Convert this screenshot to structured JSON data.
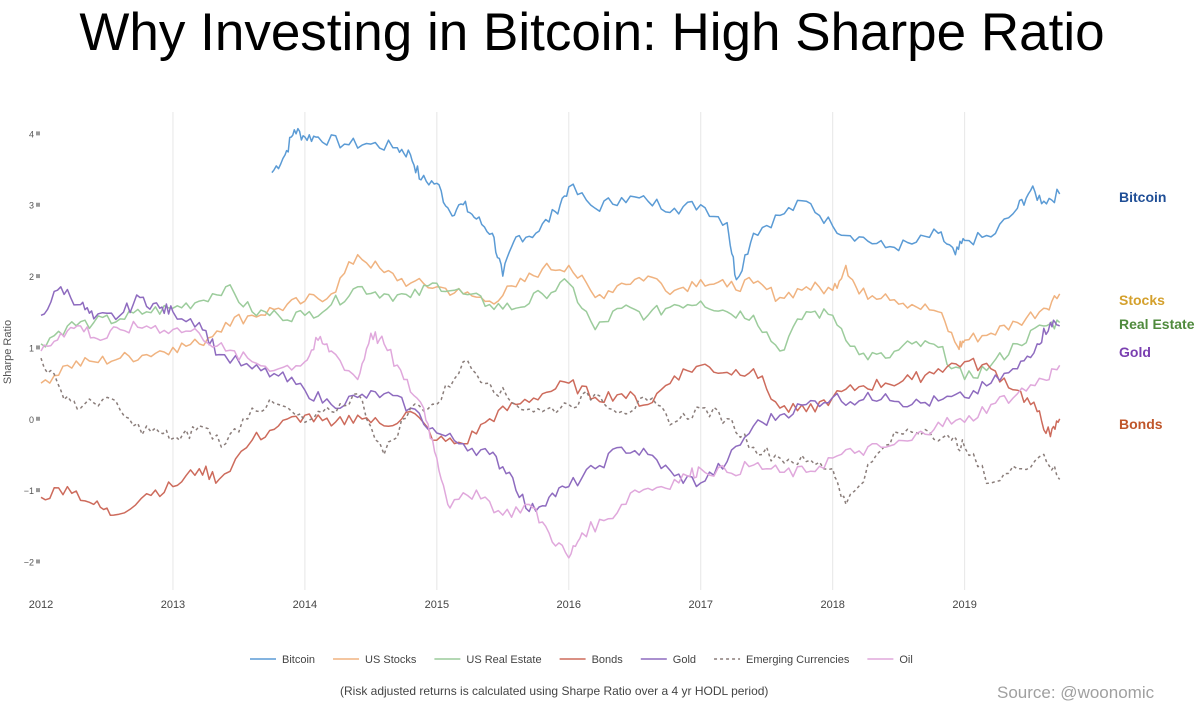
{
  "title": "Why Investing in Bitcoin: High Sharpe Ratio",
  "footnote": "(Risk adjusted returns is calculated using Sharpe Ratio over a 4 yr HODL period)",
  "source": "Source: @woonomic",
  "chart_data": {
    "type": "line",
    "title": "Why Investing in Bitcoin: High Sharpe Ratio",
    "xlabel": "",
    "ylabel": "Sharpe Ratio",
    "xlim": [
      2012.0,
      2019.95
    ],
    "ylim": [
      -2.4,
      4.3
    ],
    "x_ticks": [
      2012,
      2013,
      2014,
      2015,
      2016,
      2017,
      2018,
      2019
    ],
    "x_tick_labels": [
      "2012",
      "2013",
      "2014",
      "2015",
      "2016",
      "2017",
      "2018",
      "2019"
    ],
    "y_ticks": [
      -2,
      -1,
      0,
      1,
      2,
      3,
      4
    ],
    "y_tick_labels": [
      "−2",
      "−1",
      "0",
      "1",
      "2",
      "3",
      "4"
    ],
    "grid": "vertical",
    "legend_position": "bottom",
    "series": [
      {
        "name": "Bitcoin",
        "color": "#5b9bd5",
        "dashed": false,
        "end_label": "Bitcoin",
        "end_label_color": "#1f4e96",
        "x": [
          2013.75,
          2013.85,
          2013.92,
          2014.0,
          2014.1,
          2014.3,
          2014.5,
          2014.7,
          2014.8,
          2014.88,
          2015.0,
          2015.1,
          2015.2,
          2015.3,
          2015.42,
          2015.5,
          2015.6,
          2015.75,
          2015.9,
          2016.0,
          2016.2,
          2016.4,
          2016.6,
          2016.8,
          2017.0,
          2017.2,
          2017.27,
          2017.4,
          2017.6,
          2017.8,
          2018.0,
          2018.2,
          2018.4,
          2018.6,
          2018.8,
          2018.93,
          2019.0,
          2019.2,
          2019.4,
          2019.5,
          2019.6,
          2019.72
        ],
        "y": [
          3.45,
          3.7,
          4.05,
          3.95,
          3.95,
          3.85,
          3.85,
          3.8,
          3.7,
          3.35,
          3.3,
          2.9,
          3.0,
          2.8,
          2.6,
          2.0,
          2.55,
          2.6,
          2.9,
          3.25,
          2.95,
          3.1,
          3.05,
          2.95,
          3.0,
          2.75,
          1.95,
          2.6,
          2.85,
          3.05,
          2.7,
          2.55,
          2.4,
          2.45,
          2.6,
          2.3,
          2.5,
          2.55,
          2.95,
          3.2,
          3.05,
          3.15
        ]
      },
      {
        "name": "US Stocks",
        "color": "#f0b380",
        "dashed": false,
        "end_label": "Stocks",
        "end_label_color": "#d4a02c",
        "x": [
          2012.0,
          2012.2,
          2012.4,
          2012.6,
          2012.8,
          2013.0,
          2013.2,
          2013.4,
          2013.6,
          2013.8,
          2014.0,
          2014.2,
          2014.4,
          2014.6,
          2014.8,
          2015.0,
          2015.2,
          2015.4,
          2015.6,
          2015.8,
          2016.0,
          2016.2,
          2016.4,
          2016.6,
          2016.8,
          2017.0,
          2017.2,
          2017.4,
          2017.6,
          2017.8,
          2018.0,
          2018.1,
          2018.2,
          2018.4,
          2018.6,
          2018.8,
          2018.95,
          2019.0,
          2019.2,
          2019.4,
          2019.6,
          2019.72
        ],
        "y": [
          0.5,
          0.75,
          0.8,
          0.85,
          0.9,
          1.0,
          1.05,
          1.35,
          1.45,
          1.55,
          1.65,
          1.75,
          2.3,
          2.05,
          1.9,
          1.85,
          1.75,
          1.65,
          1.85,
          2.1,
          2.15,
          1.7,
          1.9,
          2.0,
          1.8,
          1.95,
          1.85,
          1.9,
          1.7,
          1.85,
          1.8,
          2.15,
          1.75,
          1.75,
          1.6,
          1.5,
          1.0,
          1.1,
          1.2,
          1.35,
          1.55,
          1.75
        ]
      },
      {
        "name": "US Real Estate",
        "color": "#9ccc9c",
        "dashed": false,
        "end_label": "Real Estate",
        "end_label_color": "#4f8a3c",
        "x": [
          2012.0,
          2012.2,
          2012.4,
          2012.6,
          2012.8,
          2013.0,
          2013.2,
          2013.4,
          2013.6,
          2013.8,
          2014.0,
          2014.2,
          2014.4,
          2014.6,
          2014.8,
          2015.0,
          2015.2,
          2015.4,
          2015.6,
          2015.8,
          2016.0,
          2016.2,
          2016.4,
          2016.6,
          2016.8,
          2017.0,
          2017.2,
          2017.4,
          2017.6,
          2017.8,
          2018.0,
          2018.2,
          2018.4,
          2018.6,
          2018.8,
          2019.0,
          2019.2,
          2019.4,
          2019.6,
          2019.72
        ],
        "y": [
          1.05,
          1.3,
          1.35,
          1.4,
          1.5,
          1.55,
          1.65,
          1.85,
          1.5,
          1.45,
          1.45,
          1.6,
          1.85,
          1.75,
          1.7,
          1.9,
          1.75,
          1.6,
          1.55,
          1.75,
          1.9,
          1.25,
          1.55,
          1.45,
          1.6,
          1.65,
          1.5,
          1.45,
          0.95,
          1.5,
          1.45,
          0.9,
          0.85,
          1.05,
          1.0,
          0.55,
          0.75,
          1.05,
          1.3,
          1.35
        ]
      },
      {
        "name": "Bonds",
        "color": "#cd6b5c",
        "dashed": false,
        "end_label": "Bonds",
        "end_label_color": "#c0562a",
        "x": [
          2012.0,
          2012.2,
          2012.4,
          2012.55,
          2012.8,
          2013.0,
          2013.2,
          2013.35,
          2013.6,
          2013.8,
          2014.0,
          2014.2,
          2014.4,
          2014.6,
          2014.8,
          2015.0,
          2015.2,
          2015.4,
          2015.6,
          2015.8,
          2016.0,
          2016.2,
          2016.4,
          2016.6,
          2016.8,
          2017.0,
          2017.2,
          2017.4,
          2017.6,
          2017.8,
          2018.0,
          2018.2,
          2018.4,
          2018.6,
          2018.8,
          2019.0,
          2019.2,
          2019.4,
          2019.55,
          2019.65,
          2019.72
        ],
        "y": [
          -1.1,
          -0.95,
          -1.2,
          -1.35,
          -1.05,
          -0.95,
          -0.7,
          -0.85,
          -0.3,
          -0.1,
          0.05,
          -0.1,
          0.05,
          -0.1,
          0.1,
          -0.3,
          -0.35,
          0.0,
          0.2,
          0.35,
          0.5,
          0.3,
          0.35,
          0.2,
          0.6,
          0.75,
          0.65,
          0.7,
          0.15,
          0.1,
          0.3,
          0.45,
          0.5,
          0.55,
          0.7,
          0.8,
          0.7,
          0.4,
          0.1,
          -0.25,
          0.0
        ]
      },
      {
        "name": "Gold",
        "color": "#8e6bbf",
        "dashed": false,
        "end_label": "Gold",
        "end_label_color": "#7a3fb0",
        "x": [
          2012.0,
          2012.15,
          2012.3,
          2012.4,
          2012.6,
          2012.75,
          2012.9,
          2013.0,
          2013.2,
          2013.35,
          2013.6,
          2013.8,
          2014.0,
          2014.2,
          2014.4,
          2014.6,
          2014.8,
          2015.0,
          2015.2,
          2015.4,
          2015.55,
          2015.7,
          2015.85,
          2016.0,
          2016.2,
          2016.4,
          2016.6,
          2016.8,
          2017.0,
          2017.2,
          2017.4,
          2017.6,
          2017.8,
          2018.0,
          2018.2,
          2018.4,
          2018.6,
          2018.8,
          2019.0,
          2019.2,
          2019.4,
          2019.55,
          2019.65,
          2019.72
        ],
        "y": [
          1.45,
          1.85,
          1.6,
          1.4,
          1.45,
          1.7,
          1.55,
          1.5,
          1.35,
          0.9,
          0.7,
          0.6,
          0.4,
          0.2,
          0.3,
          0.35,
          0.15,
          -0.2,
          -0.35,
          -0.5,
          -0.75,
          -1.3,
          -1.1,
          -0.95,
          -0.7,
          -0.4,
          -0.5,
          -0.8,
          -0.9,
          -0.6,
          -0.1,
          0.05,
          0.2,
          0.3,
          0.25,
          0.35,
          0.2,
          0.25,
          0.3,
          0.5,
          0.7,
          1.05,
          1.35,
          1.3
        ]
      },
      {
        "name": "Emerging Currencies",
        "color": "#8a7d7a",
        "dashed": true,
        "end_label": "",
        "x": [
          2012.0,
          2012.15,
          2012.3,
          2012.5,
          2012.7,
          2012.9,
          2013.05,
          2013.2,
          2013.4,
          2013.6,
          2013.8,
          2014.0,
          2014.2,
          2014.4,
          2014.6,
          2014.8,
          2015.0,
          2015.2,
          2015.4,
          2015.6,
          2015.8,
          2016.0,
          2016.2,
          2016.4,
          2016.6,
          2016.8,
          2017.0,
          2017.2,
          2017.4,
          2017.6,
          2017.8,
          2018.0,
          2018.1,
          2018.3,
          2018.5,
          2018.7,
          2018.9,
          2019.0,
          2019.2,
          2019.4,
          2019.6,
          2019.72
        ],
        "y": [
          0.85,
          0.4,
          0.15,
          0.3,
          -0.1,
          -0.2,
          -0.3,
          -0.1,
          -0.35,
          0.15,
          0.2,
          -0.05,
          0.1,
          0.35,
          -0.5,
          0.15,
          0.2,
          0.8,
          0.5,
          0.2,
          0.1,
          0.2,
          0.35,
          0.1,
          0.25,
          -0.05,
          0.15,
          0.0,
          -0.4,
          -0.55,
          -0.6,
          -0.7,
          -1.2,
          -0.6,
          -0.2,
          -0.15,
          -0.3,
          -0.4,
          -0.9,
          -0.7,
          -0.5,
          -0.85
        ]
      },
      {
        "name": "Oil",
        "color": "#e0a8dc",
        "dashed": false,
        "end_label": "",
        "x": [
          2012.0,
          2012.15,
          2012.3,
          2012.45,
          2012.6,
          2012.8,
          2013.0,
          2013.2,
          2013.4,
          2013.6,
          2013.8,
          2014.0,
          2014.1,
          2014.2,
          2014.4,
          2014.5,
          2014.6,
          2014.75,
          2014.9,
          2015.0,
          2015.1,
          2015.3,
          2015.5,
          2015.7,
          2015.85,
          2016.0,
          2016.1,
          2016.3,
          2016.5,
          2016.7,
          2016.9,
          2017.0,
          2017.2,
          2017.4,
          2017.6,
          2017.8,
          2018.0,
          2018.2,
          2018.4,
          2018.6,
          2018.8,
          2019.0,
          2019.2,
          2019.4,
          2019.6,
          2019.72
        ],
        "y": [
          0.95,
          1.2,
          1.3,
          1.1,
          1.25,
          1.3,
          1.25,
          1.2,
          0.95,
          0.8,
          0.7,
          0.8,
          1.1,
          0.95,
          0.55,
          1.2,
          1.05,
          0.55,
          0.15,
          -0.55,
          -1.25,
          -1.0,
          -1.35,
          -1.2,
          -1.6,
          -1.95,
          -1.6,
          -1.4,
          -1.0,
          -0.95,
          -0.8,
          -0.7,
          -0.75,
          -0.65,
          -0.75,
          -0.75,
          -0.55,
          -0.45,
          -0.4,
          -0.3,
          -0.05,
          -0.05,
          0.2,
          0.35,
          0.55,
          0.75
        ]
      }
    ]
  }
}
